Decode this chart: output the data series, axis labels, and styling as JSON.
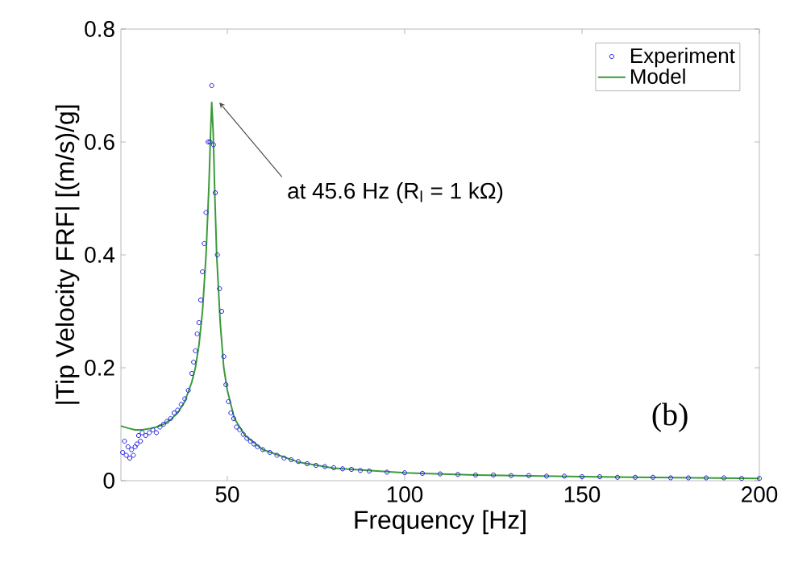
{
  "chart_data": {
    "type": "scatter",
    "xlabel": "Frequency [Hz]",
    "ylabel": "|Tip Velocity FRF| [(m/s)/g]",
    "xlim": [
      20,
      200
    ],
    "xticks": [
      50,
      100,
      150,
      200
    ],
    "ylim": [
      0,
      0.8
    ],
    "yticks": [
      0,
      0.2,
      0.4,
      0.6,
      0.8
    ],
    "legend": "top right",
    "series": [
      {
        "name": "Experiment",
        "marker": "circle",
        "color": "#1f1fe6",
        "x": [
          20.5,
          21,
          21.5,
          22,
          22.5,
          23,
          23.5,
          24,
          24.5,
          25,
          25.5,
          26,
          27,
          28,
          29,
          30,
          31,
          32,
          33,
          34,
          35,
          36,
          37,
          38,
          39,
          40,
          40.5,
          41,
          41.5,
          42,
          42.5,
          43,
          43.5,
          44,
          44.6,
          45.1,
          45.6,
          46.1,
          46.6,
          47.2,
          47.8,
          48.4,
          49,
          49.6,
          50.3,
          51,
          51.8,
          52.6,
          53.5,
          54.5,
          55.5,
          56.5,
          57.5,
          58.5,
          60,
          62,
          64,
          66,
          68,
          70,
          72.5,
          75,
          77.5,
          80,
          82.5,
          85,
          87.5,
          90,
          95,
          100,
          105,
          110,
          115,
          120,
          125,
          130,
          135,
          140,
          145,
          150,
          155,
          160,
          165,
          170,
          175,
          180,
          185,
          190,
          195,
          200
        ],
        "values": [
          0.05,
          0.07,
          0.045,
          0.06,
          0.04,
          0.055,
          0.045,
          0.06,
          0.065,
          0.08,
          0.07,
          0.085,
          0.08,
          0.085,
          0.09,
          0.085,
          0.095,
          0.1,
          0.105,
          0.11,
          0.12,
          0.125,
          0.135,
          0.145,
          0.16,
          0.19,
          0.21,
          0.23,
          0.26,
          0.28,
          0.32,
          0.37,
          0.42,
          0.475,
          0.6,
          0.6,
          0.7,
          0.595,
          0.51,
          0.4,
          0.34,
          0.3,
          0.22,
          0.17,
          0.14,
          0.12,
          0.11,
          0.095,
          0.09,
          0.082,
          0.075,
          0.07,
          0.065,
          0.06,
          0.055,
          0.05,
          0.045,
          0.04,
          0.037,
          0.034,
          0.03,
          0.027,
          0.025,
          0.023,
          0.021,
          0.02,
          0.018,
          0.017,
          0.015,
          0.014,
          0.013,
          0.012,
          0.011,
          0.01,
          0.01,
          0.009,
          0.009,
          0.008,
          0.008,
          0.007,
          0.007,
          0.006,
          0.006,
          0.006,
          0.005,
          0.005,
          0.005,
          0.005,
          0.004,
          0.004
        ]
      },
      {
        "name": "Model",
        "type": "line",
        "marker": "none",
        "color": "#3a9a3a",
        "x": [
          20,
          22,
          24,
          26,
          28,
          30,
          32,
          34,
          36,
          38,
          40,
          41,
          42,
          43,
          44,
          44.8,
          45.3,
          45.6,
          46,
          46.5,
          47,
          48,
          49,
          50,
          52,
          55,
          60,
          70,
          80,
          100,
          120,
          150,
          200
        ],
        "values": [
          0.097,
          0.093,
          0.09,
          0.09,
          0.092,
          0.095,
          0.1,
          0.108,
          0.12,
          0.14,
          0.175,
          0.2,
          0.24,
          0.3,
          0.4,
          0.52,
          0.62,
          0.67,
          0.62,
          0.5,
          0.4,
          0.28,
          0.2,
          0.16,
          0.11,
          0.08,
          0.055,
          0.033,
          0.022,
          0.014,
          0.01,
          0.007,
          0.004
        ]
      }
    ],
    "annotations": [
      {
        "text": "at 45.6 Hz (R$_{l}$ = 1 kΩ)",
        "x": 45.6,
        "y": 0.67
      },
      "(b)"
    ]
  }
}
